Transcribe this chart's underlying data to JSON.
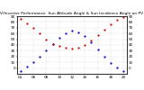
{
  "title": "Solar PV/Inverter Performance  Sun Altitude Angle & Sun Incidence Angle on PV Panels",
  "background_color": "#ffffff",
  "grid_color": "#aaaaaa",
  "blue_color": "#0000cc",
  "red_color": "#cc0000",
  "ylim": [
    -10,
    90
  ],
  "xlim": [
    3.5,
    20.5
  ],
  "time_hours": [
    4,
    5,
    6,
    7,
    8,
    9,
    10,
    11,
    12,
    13,
    14,
    15,
    16,
    17,
    18,
    19,
    20
  ],
  "sun_altitude": [
    -5,
    2,
    10,
    20,
    30,
    42,
    52,
    60,
    65,
    62,
    55,
    44,
    32,
    20,
    9,
    1,
    -5
  ],
  "sun_incidence": [
    85,
    78,
    70,
    60,
    50,
    42,
    38,
    35,
    34,
    36,
    40,
    48,
    57,
    67,
    76,
    83,
    88
  ],
  "x_ticks": [
    4,
    6,
    8,
    10,
    12,
    14,
    16,
    18,
    20
  ],
  "x_labels": [
    "04",
    "06",
    "08",
    "10",
    "12",
    "14",
    "16",
    "18",
    "20"
  ],
  "y_ticks": [
    0,
    10,
    20,
    30,
    40,
    50,
    60,
    70,
    80,
    90
  ],
  "title_fontsize": 3.2,
  "tick_fontsize": 3.0,
  "marker_size": 1.2
}
